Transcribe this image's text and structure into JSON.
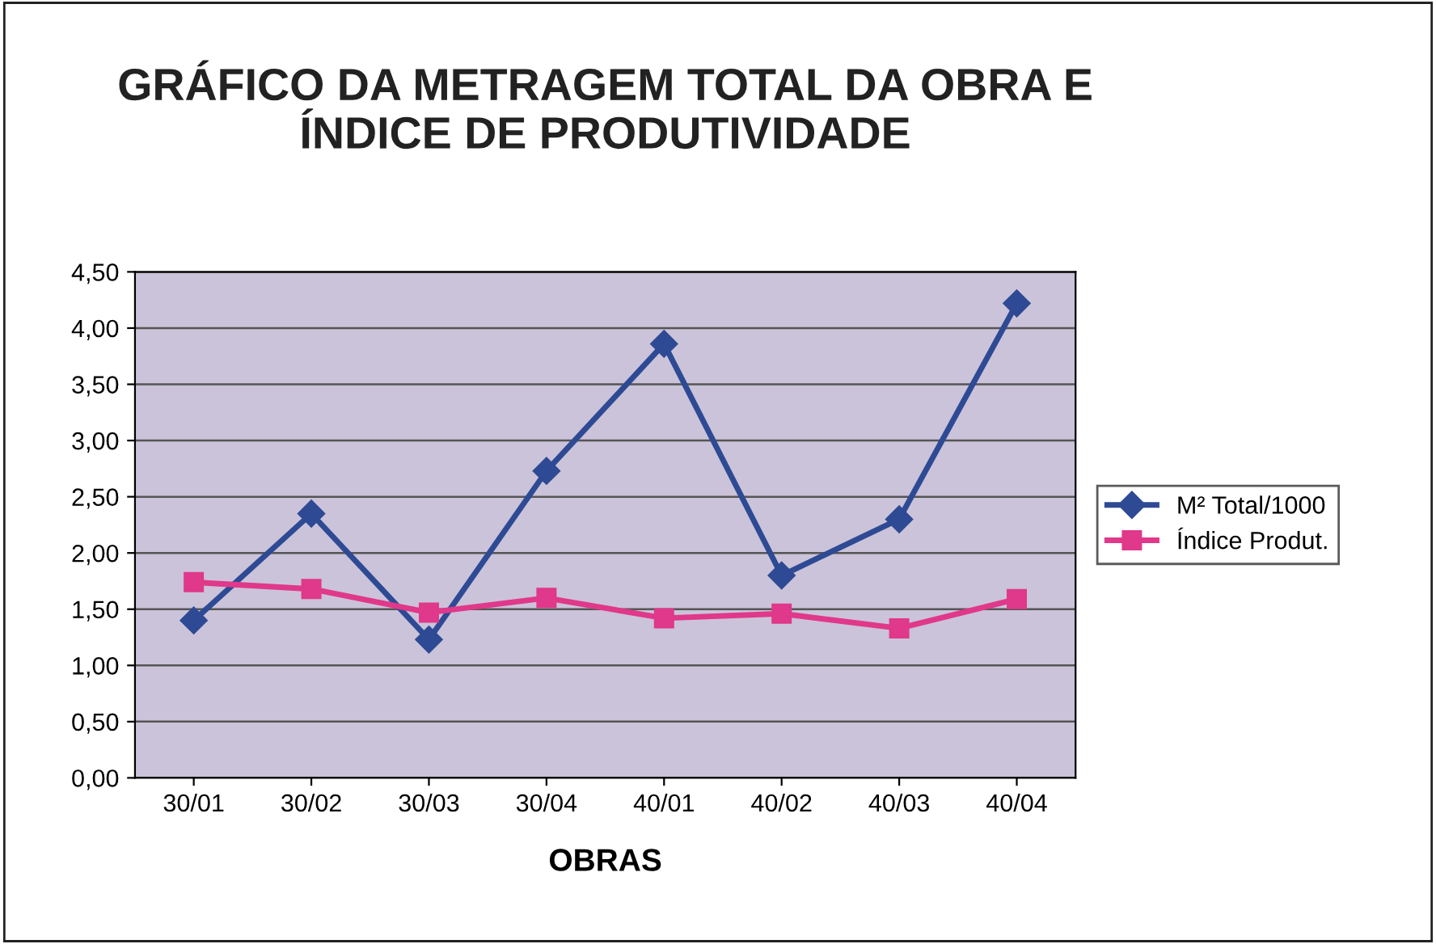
{
  "chart_data": {
    "type": "line",
    "title": "GRÁFICO DA METRAGEM TOTAL DA OBRA E\nÍNDICE DE PRODUTIVIDADE",
    "xlabel": "OBRAS",
    "categories": [
      "30/01",
      "30/02",
      "30/03",
      "30/04",
      "40/01",
      "40/02",
      "40/03",
      "40/04"
    ],
    "series": [
      {
        "name": "M² Total/1000",
        "color": "#2e4a94",
        "marker": "diamond",
        "values": [
          1.4,
          2.35,
          1.23,
          2.73,
          3.86,
          1.8,
          2.3,
          4.22
        ]
      },
      {
        "name": "Índice Produt.",
        "color": "#e0388a",
        "marker": "square",
        "values": [
          1.74,
          1.68,
          1.47,
          1.6,
          1.42,
          1.46,
          1.33,
          1.59
        ]
      }
    ],
    "ylim": [
      0,
      4.5
    ],
    "yticks": [
      {
        "value": 0,
        "label": "0,00"
      },
      {
        "value": 0.5,
        "label": "0,50"
      },
      {
        "value": 1,
        "label": "1,00"
      },
      {
        "value": 1.5,
        "label": "1,50"
      },
      {
        "value": 2,
        "label": "2,00"
      },
      {
        "value": 2.5,
        "label": "2,50"
      },
      {
        "value": 3,
        "label": "3,00"
      },
      {
        "value": 3.5,
        "label": "3,50"
      },
      {
        "value": 4,
        "label": "4,00"
      },
      {
        "value": 4.5,
        "label": "4,50"
      }
    ],
    "grid": "y",
    "legend": "right",
    "line_style": "solid"
  }
}
